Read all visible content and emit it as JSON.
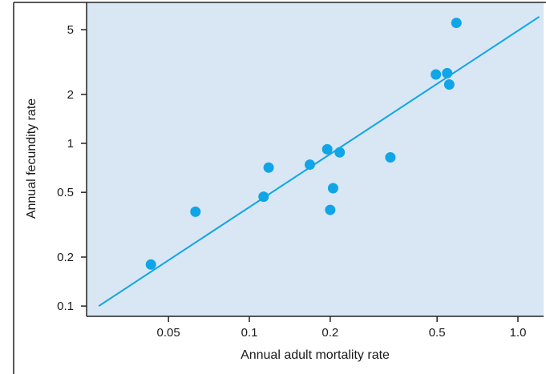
{
  "chart_data": {
    "type": "scatter",
    "xlabel": "Annual adult mortality rate",
    "ylabel": "Annual fecundity rate",
    "x_scale": "log",
    "y_scale": "log",
    "xlim": [
      0.026,
      1.2
    ],
    "ylim": [
      0.1,
      6.5
    ],
    "x_ticks": [
      0.05,
      0.1,
      0.2,
      0.5,
      1.0
    ],
    "x_tick_labels": [
      "0.05",
      "0.1",
      "0.2",
      "0.5",
      "1.0"
    ],
    "y_ticks": [
      0.1,
      0.2,
      0.5,
      1,
      2,
      5
    ],
    "y_tick_labels": [
      "0.1",
      "0.2",
      "0.5",
      "1",
      "2",
      "5"
    ],
    "grid": false,
    "legend": "none",
    "series": [
      {
        "points": [
          {
            "x": 0.043,
            "y": 0.18
          },
          {
            "x": 0.063,
            "y": 0.38
          },
          {
            "x": 0.113,
            "y": 0.47
          },
          {
            "x": 0.118,
            "y": 0.71
          },
          {
            "x": 0.168,
            "y": 0.74
          },
          {
            "x": 0.195,
            "y": 0.92
          },
          {
            "x": 0.217,
            "y": 0.88
          },
          {
            "x": 0.205,
            "y": 0.53
          },
          {
            "x": 0.2,
            "y": 0.39
          },
          {
            "x": 0.335,
            "y": 0.82
          },
          {
            "x": 0.495,
            "y": 2.65
          },
          {
            "x": 0.545,
            "y": 2.7
          },
          {
            "x": 0.555,
            "y": 2.3
          },
          {
            "x": 0.59,
            "y": 5.5
          }
        ]
      }
    ],
    "fit_line": {
      "x": [
        0.0275,
        1.2
      ],
      "y": [
        0.1,
        6.0
      ]
    },
    "colors": {
      "plot_background": "#d9e6f3",
      "marker": "#10a5e6",
      "fit_line": "#10a5e6",
      "axis": "#222222",
      "frame": "#222222"
    }
  }
}
